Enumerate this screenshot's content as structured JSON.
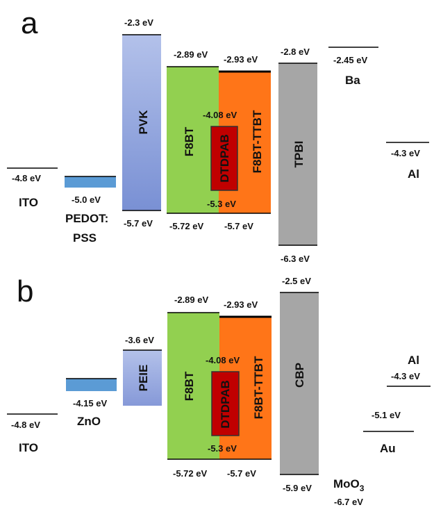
{
  "panels": [
    "a",
    "b"
  ],
  "a": {
    "ito": {
      "name": "ITO",
      "level": "-4.8 eV"
    },
    "pedot": {
      "name1": "PEDOT:",
      "name2": "PSS",
      "level": "-5.0 eV"
    },
    "pvk": {
      "name": "PVK",
      "top": "-2.3 eV",
      "bottom": "-5.7 eV"
    },
    "f8bt": {
      "name": "F8BT",
      "top": "-2.89 eV",
      "bottom": "-5.72 eV"
    },
    "f8bt_ttbt": {
      "name": "F8BT-TTBT",
      "top": "-2.93 eV",
      "bottom": "-5.7 eV"
    },
    "dtdpab": {
      "name": "DTDPAB",
      "top": "-4.08 eV",
      "bottom": "-5.3 eV"
    },
    "tpbi": {
      "name": "TPBI",
      "top": "-2.8 eV",
      "bottom": "-6.3 eV"
    },
    "ba": {
      "name": "Ba",
      "level": "-2.45 eV"
    },
    "al": {
      "name": "Al",
      "level": "-4.3 eV"
    }
  },
  "b": {
    "ito": {
      "name": "ITO",
      "level": "-4.8 eV"
    },
    "zno": {
      "name": "ZnO",
      "level": "-4.15 eV"
    },
    "peie": {
      "name": "PEIE",
      "top": "-3.6 eV"
    },
    "f8bt": {
      "name": "F8BT",
      "top": "-2.89 eV",
      "bottom": "-5.72 eV"
    },
    "f8bt_ttbt": {
      "name": "F8BT-TTBT",
      "top": "-2.93 eV",
      "bottom": "-5.7 eV"
    },
    "dtdpab": {
      "name": "DTDPAB",
      "top": "-4.08 eV",
      "bottom": "-5.3 eV"
    },
    "cbp": {
      "name": "CBP",
      "top": "-2.5 eV",
      "bottom": "-5.9 eV"
    },
    "moo3": {
      "name": "MoO",
      "sub": "3",
      "level": "-6.7 eV"
    },
    "au": {
      "name": "Au",
      "level": "-5.1 eV"
    },
    "al": {
      "name": "Al",
      "level": "-4.3 eV"
    }
  },
  "colors": {
    "pvk_top": "#aebde8",
    "pvk_bottom": "#7d93d6",
    "pedot": "#5b9bd5",
    "f8bt": "#92d050",
    "f8bt_ttbt": "#ff7518",
    "dtdpab": "#c00000",
    "tpbi": "#a6a6a6"
  }
}
